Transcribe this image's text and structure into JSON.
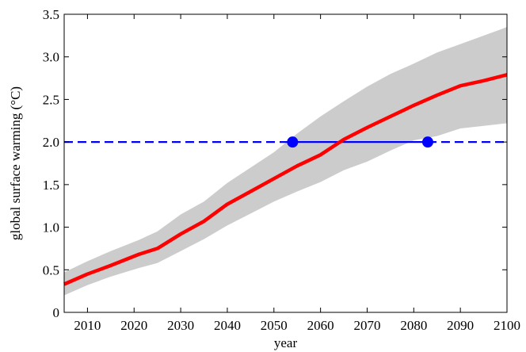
{
  "chart_data": {
    "type": "line",
    "title": "",
    "xlabel": "year",
    "ylabel": "global surface warming (°C)",
    "xlim": [
      2005,
      2100
    ],
    "ylim": [
      0,
      3.5
    ],
    "x_ticks": [
      2010,
      2020,
      2030,
      2040,
      2050,
      2060,
      2070,
      2080,
      2090,
      2100
    ],
    "y_ticks": [
      0,
      0.5,
      1.0,
      1.5,
      2.0,
      2.5,
      3.0,
      3.5
    ],
    "x_tick_labels": [
      "2010",
      "2020",
      "2030",
      "2040",
      "2050",
      "2060",
      "2070",
      "2080",
      "2090",
      "2100"
    ],
    "y_tick_labels": [
      "0",
      "0.5",
      "1.0",
      "1.5",
      "2.0",
      "2.5",
      "3.0",
      "3.5"
    ],
    "grid": false,
    "series": [
      {
        "kind": "line",
        "color": "#ff0000",
        "x": [
          2005,
          2010,
          2015,
          2021,
          2025,
          2030,
          2035,
          2040,
          2045,
          2050,
          2055,
          2060,
          2065,
          2070,
          2075,
          2080,
          2085,
          2090,
          2095,
          2100
        ],
        "y": [
          0.33,
          0.45,
          0.55,
          0.68,
          0.75,
          0.92,
          1.07,
          1.27,
          1.42,
          1.57,
          1.72,
          1.85,
          2.03,
          2.17,
          2.3,
          2.43,
          2.55,
          2.66,
          2.72,
          2.79
        ]
      },
      {
        "kind": "band",
        "color": "#cccccc",
        "x": [
          2005,
          2010,
          2015,
          2021,
          2025,
          2030,
          2035,
          2040,
          2045,
          2050,
          2055,
          2060,
          2065,
          2070,
          2075,
          2080,
          2085,
          2090,
          2095,
          2100
        ],
        "lower": [
          0.2,
          0.32,
          0.42,
          0.52,
          0.58,
          0.72,
          0.86,
          1.02,
          1.16,
          1.3,
          1.42,
          1.53,
          1.67,
          1.77,
          1.9,
          2.02,
          2.07,
          2.16,
          2.19,
          2.22
        ],
        "upper": [
          0.47,
          0.6,
          0.72,
          0.85,
          0.95,
          1.15,
          1.3,
          1.52,
          1.7,
          1.88,
          2.1,
          2.3,
          2.48,
          2.65,
          2.8,
          2.92,
          3.05,
          3.15,
          3.25,
          3.35
        ]
      },
      {
        "kind": "hline",
        "color": "#0000ff",
        "y": 2.0,
        "solid_between": [
          2054,
          2083
        ]
      },
      {
        "kind": "points",
        "color": "#0000ff",
        "x": [
          2054,
          2083
        ],
        "y": [
          2.0,
          2.0
        ]
      }
    ]
  }
}
